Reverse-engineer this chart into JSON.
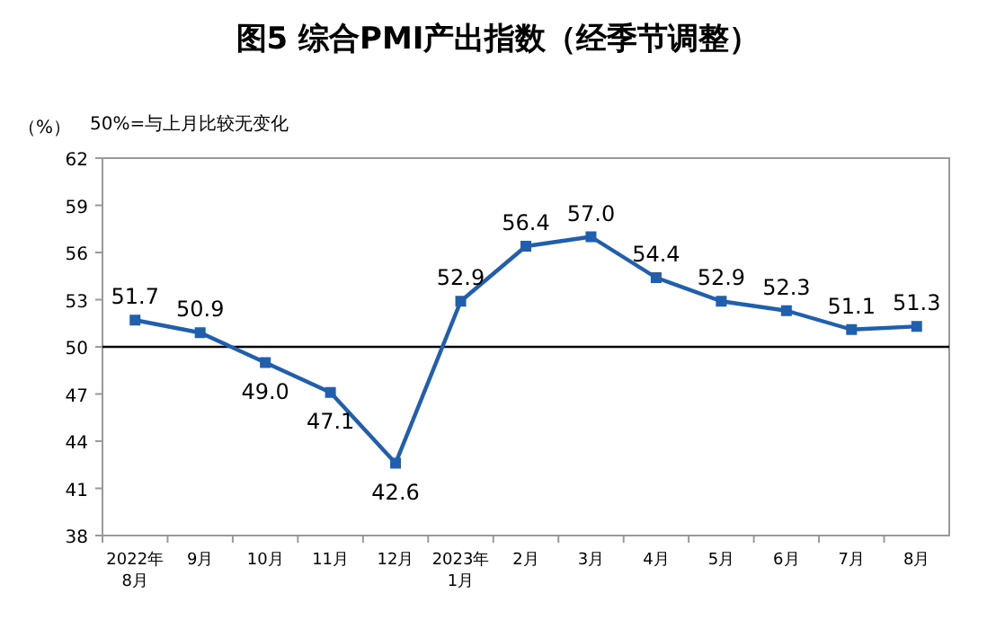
{
  "chart_data": {
    "type": "line",
    "title": "图5 综合PMI产出指数（经季节调整）",
    "ylabel": "（%）",
    "annotations": [
      "50%=与上月比较无变化"
    ],
    "categories": [
      "2022年8月",
      "9月",
      "10月",
      "11月",
      "12月",
      "2023年1月",
      "2月",
      "3月",
      "4月",
      "5月",
      "6月",
      "7月",
      "8月"
    ],
    "series": [
      {
        "color": "#1f5fae",
        "values": [
          51.7,
          50.9,
          49.0,
          47.1,
          42.6,
          52.9,
          56.4,
          57.0,
          54.4,
          52.9,
          52.3,
          51.1,
          51.3
        ],
        "value_labels": [
          "51.7",
          "50.9",
          "49.0",
          "47.1",
          "42.6",
          "52.9",
          "56.4",
          "57.0",
          "54.4",
          "52.9",
          "52.3",
          "51.1",
          "51.3"
        ]
      }
    ],
    "ylim": [
      38,
      62
    ],
    "yticks": [
      38,
      41,
      44,
      47,
      50,
      53,
      56,
      59,
      62
    ],
    "ref_lines": [
      {
        "axis": "y",
        "value": 50,
        "color": "#000000"
      }
    ],
    "marker": "square",
    "line_style": "solid",
    "grid": false
  }
}
